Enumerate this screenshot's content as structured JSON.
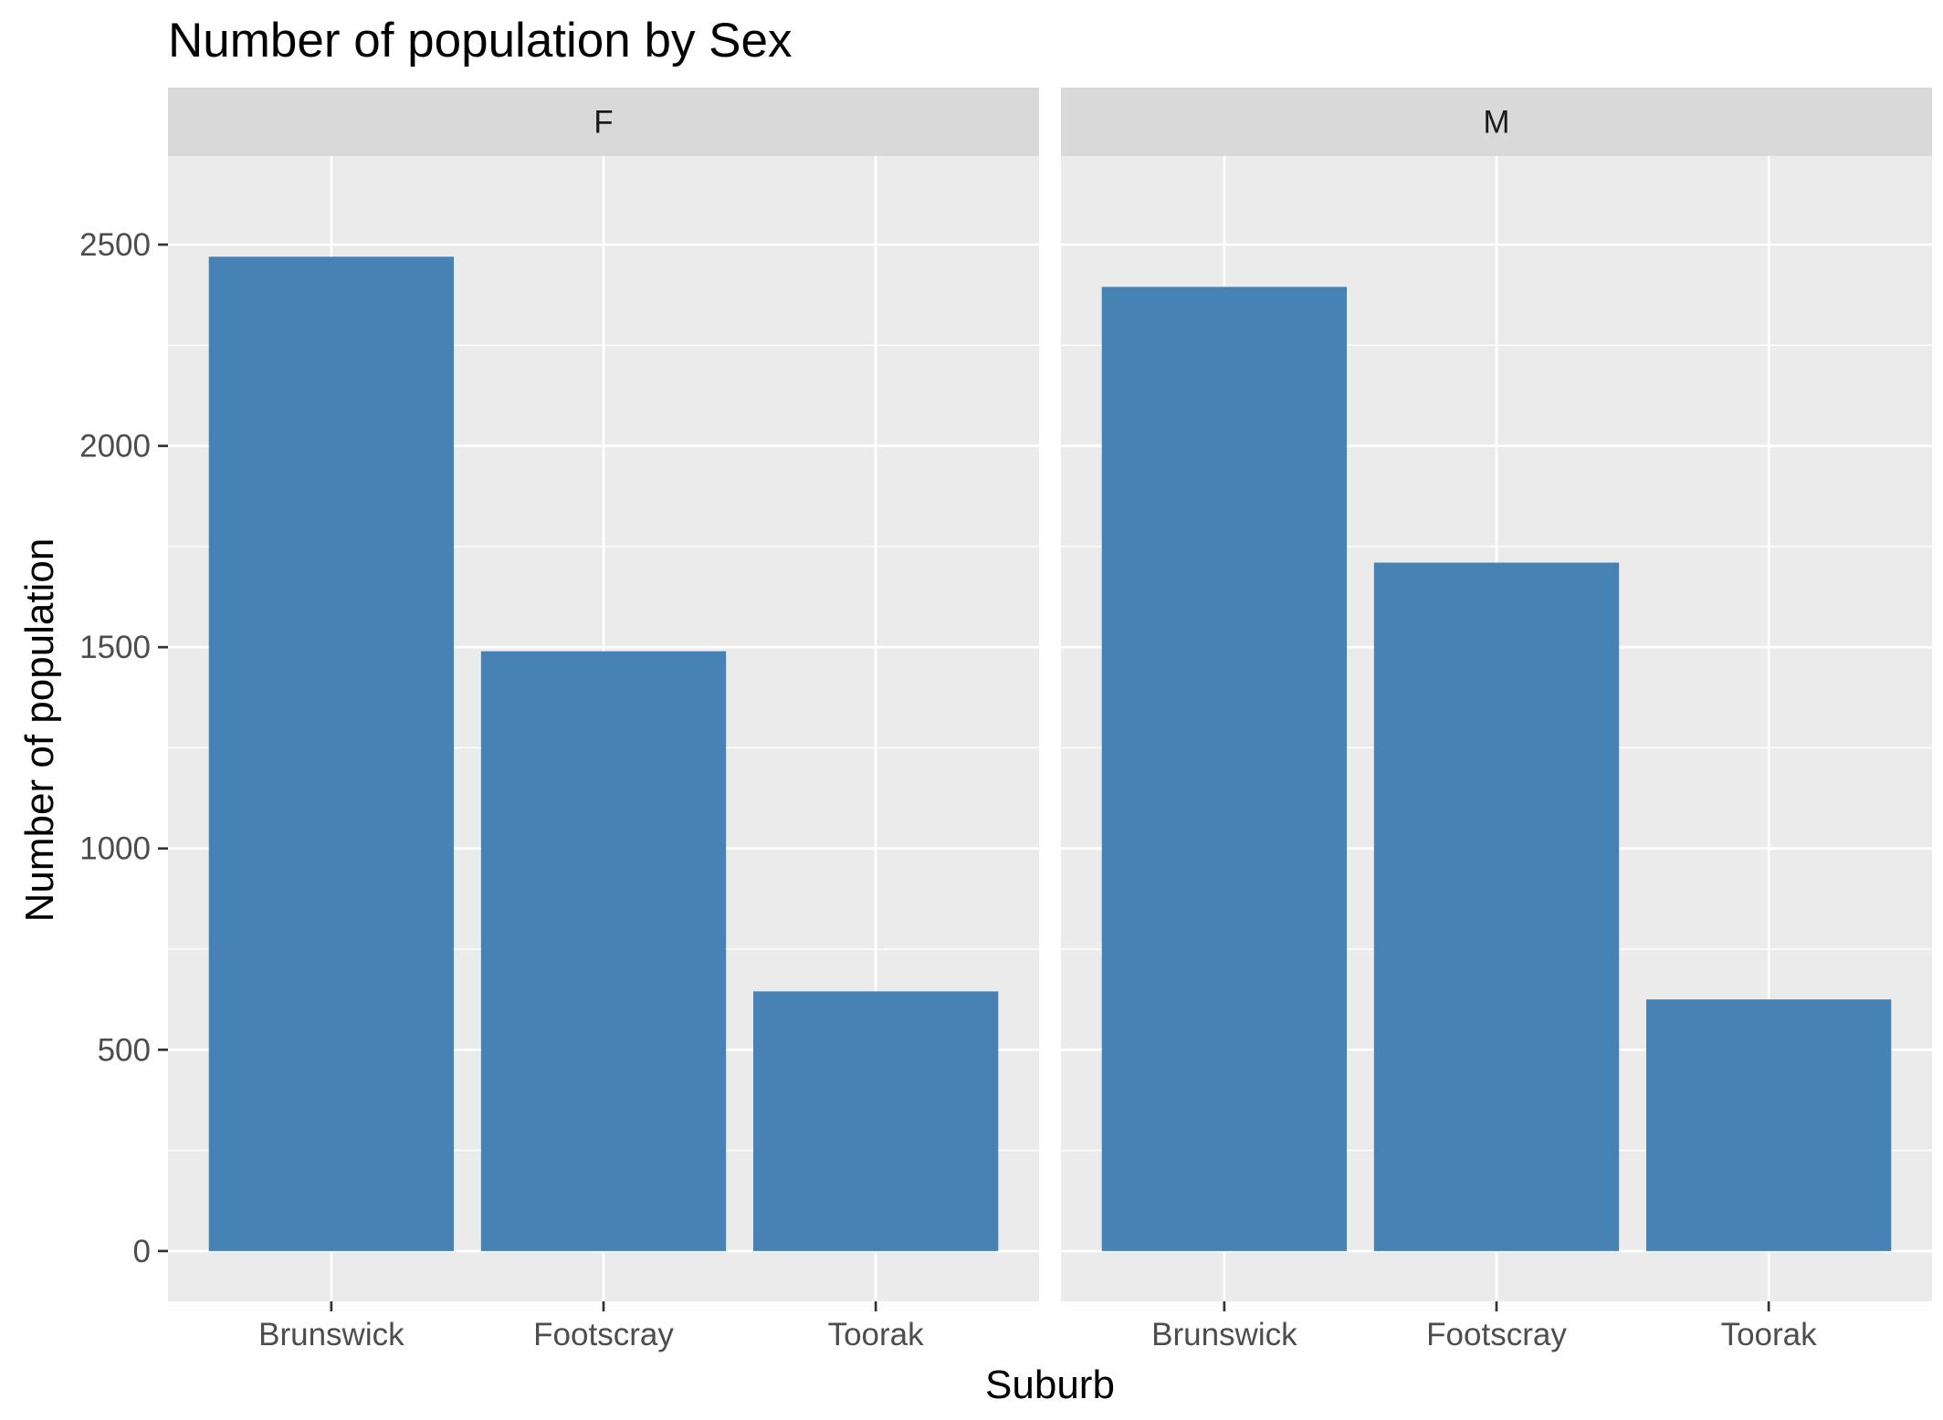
{
  "chart_data": {
    "type": "bar",
    "title": "Number of population by Sex",
    "xlabel": "Suburb",
    "ylabel": "Number of population",
    "categories": [
      "Brunswick",
      "Footscray",
      "Toorak"
    ],
    "facets": [
      {
        "label": "F",
        "values": [
          2470,
          1490,
          645
        ]
      },
      {
        "label": "M",
        "values": [
          2395,
          1710,
          625
        ]
      }
    ],
    "yticks": [
      0,
      500,
      1000,
      1500,
      2000,
      2500
    ],
    "ylim": [
      -125,
      2720
    ],
    "bar_color": "#4682B4",
    "grid": true,
    "legend": "none"
  }
}
